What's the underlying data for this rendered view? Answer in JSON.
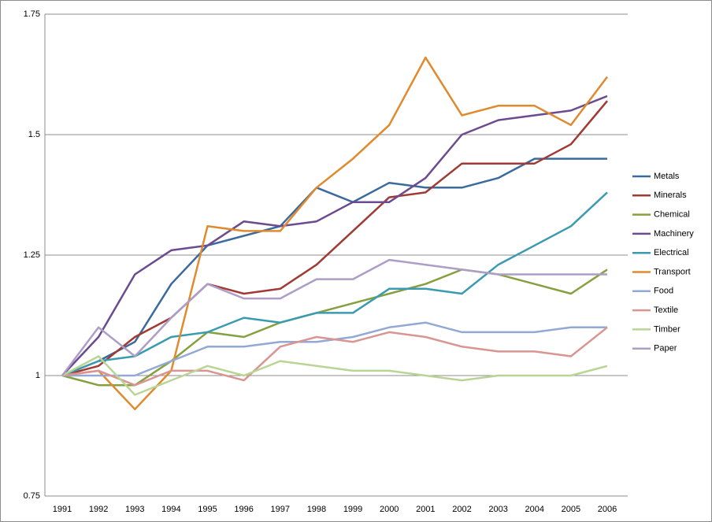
{
  "chart_data": {
    "type": "line",
    "categories": [
      "1991",
      "1992",
      "1993",
      "1994",
      "1995",
      "1996",
      "1997",
      "1998",
      "1999",
      "2000",
      "2001",
      "2002",
      "2003",
      "2004",
      "2005",
      "2006"
    ],
    "series": [
      {
        "name": "Metals",
        "color": "#3a6a9e",
        "values": [
          1,
          1.03,
          1.07,
          1.19,
          1.27,
          1.29,
          1.31,
          1.39,
          1.36,
          1.4,
          1.39,
          1.39,
          1.41,
          1.45,
          1.45,
          1.45
        ]
      },
      {
        "name": "Minerals",
        "color": "#a13a35",
        "values": [
          1,
          1.02,
          1.08,
          1.12,
          1.19,
          1.17,
          1.18,
          1.23,
          1.3,
          1.37,
          1.38,
          1.44,
          1.44,
          1.44,
          1.48,
          1.57
        ]
      },
      {
        "name": "Chemical",
        "color": "#84a03f",
        "values": [
          1,
          0.98,
          0.98,
          1.03,
          1.09,
          1.08,
          1.11,
          1.13,
          1.15,
          1.17,
          1.19,
          1.22,
          1.21,
          1.19,
          1.17,
          1.22
        ]
      },
      {
        "name": "Machinery",
        "color": "#6b4a8f",
        "values": [
          1,
          1.08,
          1.21,
          1.26,
          1.27,
          1.32,
          1.31,
          1.32,
          1.36,
          1.36,
          1.41,
          1.5,
          1.53,
          1.54,
          1.55,
          1.58
        ]
      },
      {
        "name": "Electrical",
        "color": "#3a9bb0",
        "values": [
          1,
          1.03,
          1.04,
          1.08,
          1.09,
          1.12,
          1.11,
          1.13,
          1.13,
          1.18,
          1.18,
          1.17,
          1.23,
          1.27,
          1.31,
          1.38
        ]
      },
      {
        "name": "Transport",
        "color": "#e08a2e",
        "values": [
          1,
          1.01,
          0.93,
          1.01,
          1.31,
          1.3,
          1.3,
          1.39,
          1.45,
          1.52,
          1.66,
          1.54,
          1.56,
          1.56,
          1.52,
          1.62
        ]
      },
      {
        "name": "Food",
        "color": "#92a9d6",
        "values": [
          1,
          1.0,
          1.0,
          1.03,
          1.06,
          1.06,
          1.07,
          1.07,
          1.08,
          1.1,
          1.11,
          1.09,
          1.09,
          1.09,
          1.1,
          1.1
        ]
      },
      {
        "name": "Textile",
        "color": "#d99591",
        "values": [
          1,
          1.01,
          0.98,
          1.01,
          1.01,
          0.99,
          1.06,
          1.08,
          1.07,
          1.09,
          1.08,
          1.06,
          1.05,
          1.05,
          1.04,
          1.1
        ]
      },
      {
        "name": "Timber",
        "color": "#b9d596",
        "values": [
          1,
          1.04,
          0.96,
          0.99,
          1.02,
          1.0,
          1.03,
          1.02,
          1.01,
          1.01,
          1.0,
          0.99,
          1.0,
          1.0,
          1.0,
          1.02
        ]
      },
      {
        "name": "Paper",
        "color": "#ad9dc7",
        "values": [
          1,
          1.1,
          1.04,
          1.12,
          1.19,
          1.16,
          1.16,
          1.2,
          1.2,
          1.24,
          1.23,
          1.22,
          1.21,
          1.21,
          1.21,
          1.21
        ]
      }
    ],
    "ylim": [
      0.75,
      1.75
    ],
    "yticks": [
      0.75,
      1,
      1.25,
      1.5,
      1.75
    ],
    "grid": true,
    "legend": "right"
  }
}
